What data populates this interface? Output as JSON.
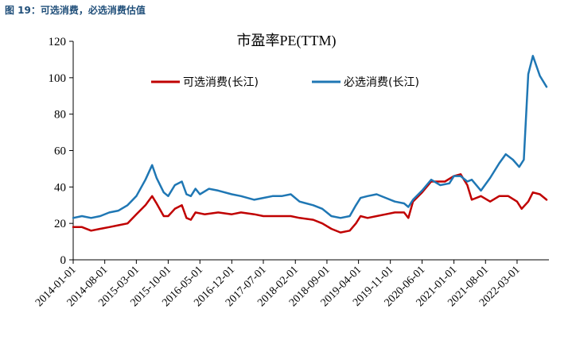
{
  "figure_caption": "图 19：可选消费，必选消费估值",
  "chart_data": {
    "type": "line",
    "title": "市盈率PE(TTM)",
    "ylim": [
      0,
      120
    ],
    "y_ticks": [
      "0",
      "20",
      "40",
      "60",
      "80",
      "100",
      "120"
    ],
    "x_tick_labels": [
      "2014-01-01",
      "2014-08-01",
      "2015-03-01",
      "2015-10-01",
      "2016-05-01",
      "2016-12-01",
      "2017-07-01",
      "2018-02-01",
      "2018-09-01",
      "2019-04-01",
      "2019-11-01",
      "2020-06-01",
      "2021-01-01",
      "2021-08-01",
      "2022-03-01"
    ],
    "x_range": [
      "2014-01-01",
      "2022-10-01"
    ],
    "grid": false,
    "legend_position": "top-center",
    "series": [
      {
        "name": "可选消费(长江)",
        "color": "#c00000",
        "points": [
          [
            "2014-01-01",
            18
          ],
          [
            "2014-03-01",
            18
          ],
          [
            "2014-05-01",
            16
          ],
          [
            "2014-07-01",
            17
          ],
          [
            "2014-09-01",
            18
          ],
          [
            "2014-11-01",
            19
          ],
          [
            "2015-01-01",
            20
          ],
          [
            "2015-03-01",
            25
          ],
          [
            "2015-05-01",
            30
          ],
          [
            "2015-06-15",
            35
          ],
          [
            "2015-07-15",
            31
          ],
          [
            "2015-09-01",
            24
          ],
          [
            "2015-10-01",
            24
          ],
          [
            "2015-11-15",
            28
          ],
          [
            "2016-01-01",
            30
          ],
          [
            "2016-02-01",
            23
          ],
          [
            "2016-03-01",
            22
          ],
          [
            "2016-04-01",
            26
          ],
          [
            "2016-06-01",
            25
          ],
          [
            "2016-09-01",
            26
          ],
          [
            "2016-12-01",
            25
          ],
          [
            "2017-02-01",
            26
          ],
          [
            "2017-05-01",
            25
          ],
          [
            "2017-07-01",
            24
          ],
          [
            "2017-10-01",
            24
          ],
          [
            "2018-01-01",
            24
          ],
          [
            "2018-03-01",
            23
          ],
          [
            "2018-06-01",
            22
          ],
          [
            "2018-08-01",
            20
          ],
          [
            "2018-10-01",
            17
          ],
          [
            "2018-12-01",
            15
          ],
          [
            "2019-02-01",
            16
          ],
          [
            "2019-03-15",
            20
          ],
          [
            "2019-04-15",
            24
          ],
          [
            "2019-06-01",
            23
          ],
          [
            "2019-08-01",
            24
          ],
          [
            "2019-10-01",
            25
          ],
          [
            "2019-12-01",
            26
          ],
          [
            "2020-02-01",
            26
          ],
          [
            "2020-03-01",
            23
          ],
          [
            "2020-04-01",
            32
          ],
          [
            "2020-06-01",
            37
          ],
          [
            "2020-08-01",
            43
          ],
          [
            "2020-11-01",
            43
          ],
          [
            "2021-01-01",
            46
          ],
          [
            "2021-02-15",
            47
          ],
          [
            "2021-04-01",
            41
          ],
          [
            "2021-05-01",
            33
          ],
          [
            "2021-07-01",
            35
          ],
          [
            "2021-09-01",
            32
          ],
          [
            "2021-11-01",
            35
          ],
          [
            "2022-01-01",
            35
          ],
          [
            "2022-03-01",
            32
          ],
          [
            "2022-04-01",
            28
          ],
          [
            "2022-05-15",
            32
          ],
          [
            "2022-06-15",
            37
          ],
          [
            "2022-08-01",
            36
          ],
          [
            "2022-09-15",
            33
          ]
        ]
      },
      {
        "name": "必选消费(长江)",
        "color": "#1f77b4",
        "points": [
          [
            "2014-01-01",
            23
          ],
          [
            "2014-03-01",
            24
          ],
          [
            "2014-05-01",
            23
          ],
          [
            "2014-07-01",
            24
          ],
          [
            "2014-09-01",
            26
          ],
          [
            "2014-11-01",
            27
          ],
          [
            "2015-01-01",
            30
          ],
          [
            "2015-03-01",
            35
          ],
          [
            "2015-05-01",
            44
          ],
          [
            "2015-06-15",
            52
          ],
          [
            "2015-07-15",
            45
          ],
          [
            "2015-09-01",
            37
          ],
          [
            "2015-10-01",
            35
          ],
          [
            "2015-11-15",
            41
          ],
          [
            "2016-01-01",
            43
          ],
          [
            "2016-02-01",
            36
          ],
          [
            "2016-03-01",
            35
          ],
          [
            "2016-04-01",
            39
          ],
          [
            "2016-05-01",
            36
          ],
          [
            "2016-07-01",
            39
          ],
          [
            "2016-09-01",
            38
          ],
          [
            "2016-12-01",
            36
          ],
          [
            "2017-02-01",
            35
          ],
          [
            "2017-05-01",
            33
          ],
          [
            "2017-07-01",
            34
          ],
          [
            "2017-09-01",
            35
          ],
          [
            "2017-11-01",
            35
          ],
          [
            "2018-01-01",
            36
          ],
          [
            "2018-03-01",
            32
          ],
          [
            "2018-06-01",
            30
          ],
          [
            "2018-08-01",
            28
          ],
          [
            "2018-10-01",
            24
          ],
          [
            "2018-12-01",
            23
          ],
          [
            "2019-02-01",
            24
          ],
          [
            "2019-03-15",
            30
          ],
          [
            "2019-04-15",
            34
          ],
          [
            "2019-06-01",
            35
          ],
          [
            "2019-08-01",
            36
          ],
          [
            "2019-10-01",
            34
          ],
          [
            "2019-12-01",
            32
          ],
          [
            "2020-02-01",
            31
          ],
          [
            "2020-03-01",
            29
          ],
          [
            "2020-04-01",
            33
          ],
          [
            "2020-06-01",
            38
          ],
          [
            "2020-08-01",
            44
          ],
          [
            "2020-10-01",
            41
          ],
          [
            "2020-12-01",
            42
          ],
          [
            "2021-01-01",
            46
          ],
          [
            "2021-02-15",
            46
          ],
          [
            "2021-04-01",
            43
          ],
          [
            "2021-05-01",
            44
          ],
          [
            "2021-07-01",
            38
          ],
          [
            "2021-09-01",
            45
          ],
          [
            "2021-11-01",
            53
          ],
          [
            "2021-12-15",
            58
          ],
          [
            "2022-02-01",
            55
          ],
          [
            "2022-03-15",
            51
          ],
          [
            "2022-04-15",
            55
          ],
          [
            "2022-05-15",
            102
          ],
          [
            "2022-06-15",
            112
          ],
          [
            "2022-08-01",
            101
          ],
          [
            "2022-09-15",
            95
          ]
        ]
      }
    ]
  }
}
